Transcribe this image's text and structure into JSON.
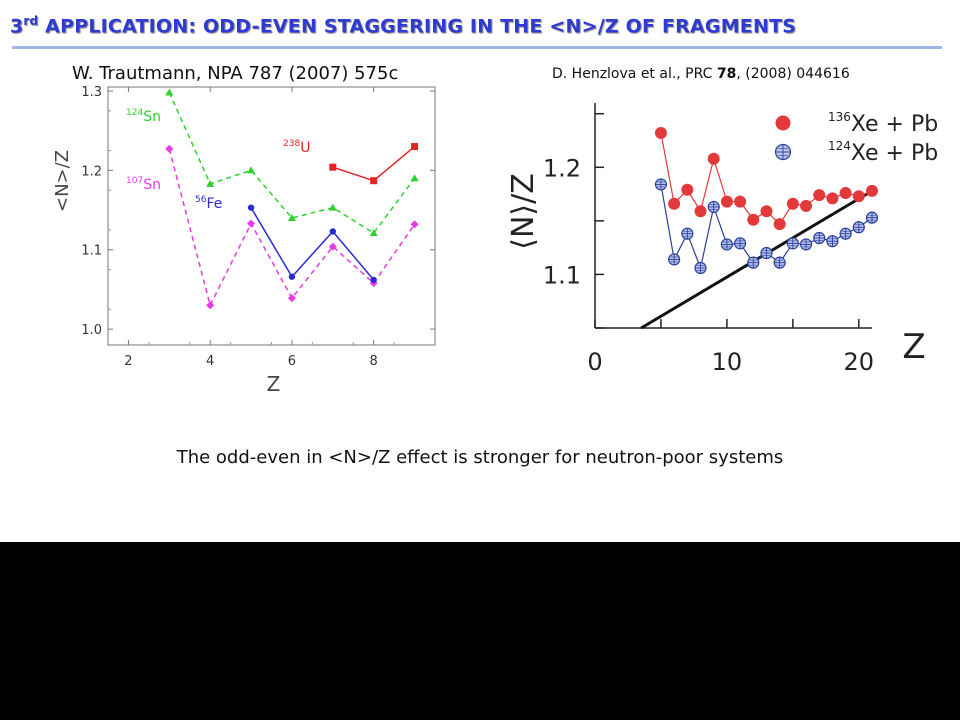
{
  "slide": {
    "title_sup_num": "3",
    "title_sup": "rd",
    "title_text": " APPLICATION: ODD-EVEN STAGGERING IN THE <N>/Z OF FRAGMENTS",
    "cite_left": "W. Trautmann, NPA 787 (2007) 575c",
    "cite_right_pre": "D. Henzlova et al., PRC ",
    "cite_right_bold": "78",
    "cite_right_post": ", (2008) 044616",
    "conclusion": "The odd-even in <N>/Z effect is stronger for neutron-poor systems"
  },
  "chart_data": [
    {
      "type": "line",
      "title": "",
      "xlabel": "Z",
      "ylabel": "<N>/Z",
      "xlim": [
        1.5,
        9.5
      ],
      "ylim": [
        0.98,
        1.305
      ],
      "xticks": [
        2,
        4,
        6,
        8
      ],
      "yticks": [
        1.0,
        1.1,
        1.2,
        1.3
      ],
      "ytick_labels": [
        "1.0",
        "1.1",
        "1.2",
        "1.3"
      ],
      "grid": false,
      "series": [
        {
          "name": "Sn",
          "label_mass": "124",
          "color": "#2ed12e",
          "marker": "triangle",
          "dash": true,
          "x": [
            3,
            4,
            5,
            6,
            7,
            8,
            9
          ],
          "y": [
            1.298,
            1.183,
            1.2,
            1.14,
            1.153,
            1.121,
            1.19
          ]
        },
        {
          "name": "Sn",
          "label_mass": "107",
          "color": "#e53be5",
          "marker": "diamond",
          "dash": true,
          "x": [
            3,
            4,
            5,
            6,
            7,
            8,
            9
          ],
          "y": [
            1.227,
            1.03,
            1.133,
            1.039,
            1.104,
            1.058,
            1.132
          ]
        },
        {
          "name": "Fe",
          "label_mass": "56",
          "color": "#2b2bd4",
          "marker": "circle",
          "dash": false,
          "x": [
            5,
            6,
            7,
            8
          ],
          "y": [
            1.153,
            1.066,
            1.123,
            1.062
          ]
        },
        {
          "name": "U",
          "label_mass": "238",
          "color": "#e02424",
          "marker": "square",
          "dash": false,
          "x": [
            7,
            8,
            9
          ],
          "y": [
            1.204,
            1.187,
            1.23
          ]
        }
      ]
    },
    {
      "type": "line",
      "title": "",
      "xlabel": "Z",
      "ylabel": "⟨N⟩/Z",
      "xlim": [
        0,
        21
      ],
      "ylim": [
        1.05,
        1.26
      ],
      "xticks": [
        0,
        10,
        20
      ],
      "yticks": [
        1.1,
        1.2
      ],
      "ytick_labels": [
        "1.1",
        "1.2"
      ],
      "grid": false,
      "legend": "top-right",
      "series": [
        {
          "name": "Xe + Pb",
          "label_mass": "136",
          "color": "#e23a3a",
          "marker": "filled-circle",
          "x": [
            5,
            6,
            7,
            8,
            9,
            10,
            11,
            12,
            13,
            14,
            15,
            16,
            17,
            18,
            19,
            20,
            21
          ],
          "y": [
            1.232,
            1.166,
            1.179,
            1.159,
            1.208,
            1.168,
            1.168,
            1.151,
            1.159,
            1.147,
            1.166,
            1.164,
            1.174,
            1.171,
            1.176,
            1.173,
            1.178
          ]
        },
        {
          "name": "Xe + Pb",
          "label_mass": "124",
          "color": "#2b3f9a",
          "marker": "open-cross-circle",
          "x": [
            5,
            6,
            7,
            8,
            9,
            10,
            11,
            12,
            13,
            14,
            15,
            16,
            17,
            18,
            19,
            20,
            21
          ],
          "y": [
            1.184,
            1.114,
            1.138,
            1.106,
            1.163,
            1.128,
            1.129,
            1.111,
            1.12,
            1.111,
            1.129,
            1.128,
            1.134,
            1.131,
            1.138,
            1.144,
            1.153
          ]
        }
      ],
      "reference_line": {
        "x": [
          3.5,
          21
        ],
        "y": [
          1.05,
          1.178
        ]
      }
    }
  ]
}
